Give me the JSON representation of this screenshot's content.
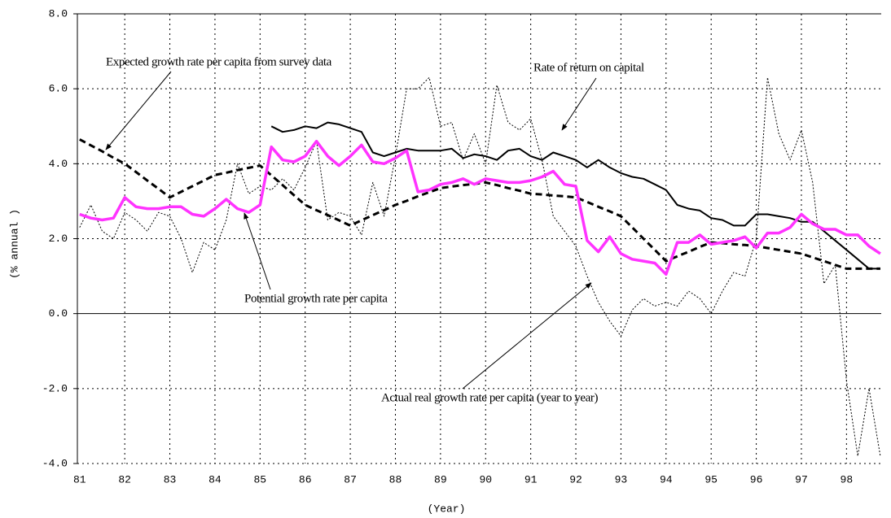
{
  "chart_data": {
    "type": "line",
    "xlabel": "(Year)",
    "ylabel": "(% annual )",
    "x": [
      81,
      81.25,
      81.5,
      81.75,
      82,
      82.25,
      82.5,
      82.75,
      83,
      83.25,
      83.5,
      83.75,
      84,
      84.25,
      84.5,
      84.75,
      85,
      85.25,
      85.5,
      85.75,
      86,
      86.25,
      86.5,
      86.75,
      87,
      87.25,
      87.5,
      87.75,
      88,
      88.25,
      88.5,
      88.75,
      89,
      89.25,
      89.5,
      89.75,
      90,
      90.25,
      90.5,
      90.75,
      91,
      91.25,
      91.5,
      91.75,
      92,
      92.25,
      92.5,
      92.75,
      93,
      93.25,
      93.5,
      93.75,
      94,
      94.25,
      94.5,
      94.75,
      95,
      95.25,
      95.5,
      95.75,
      96,
      96.25,
      96.5,
      96.75,
      97,
      97.25,
      97.5,
      97.75,
      98,
      98.25,
      98.5,
      98.75
    ],
    "series": [
      {
        "color": "#000000",
        "line_style": "dotted",
        "values": [
          2.3,
          2.9,
          2.2,
          2.0,
          2.7,
          2.5,
          2.2,
          2.7,
          2.6,
          2.0,
          1.1,
          1.9,
          1.7,
          2.5,
          4.0,
          3.2,
          3.4,
          3.3,
          3.6,
          3.3,
          3.9,
          4.6,
          2.5,
          2.7,
          2.6,
          2.1,
          3.5,
          2.6,
          4.2,
          6.0,
          6.0,
          6.3,
          5.0,
          5.1,
          4.1,
          4.8,
          4.0,
          6.1,
          5.1,
          4.9,
          5.2,
          4.1,
          2.6,
          2.2,
          1.8,
          1.0,
          0.3,
          -0.2,
          -0.6,
          0.1,
          0.4,
          0.2,
          0.3,
          0.2,
          0.6,
          0.4,
          0.0,
          0.6,
          1.1,
          1.0,
          2.0,
          6.3,
          4.8,
          4.1,
          4.9,
          3.5,
          0.8,
          1.3,
          -1.8,
          -3.8,
          -2.0,
          -3.8
        ]
      },
      {
        "color": "#000000",
        "line_style": "dashed",
        "values": [
          4.65,
          4.49,
          4.33,
          4.16,
          4.0,
          3.78,
          3.55,
          3.33,
          3.1,
          3.25,
          3.4,
          3.55,
          3.7,
          3.76,
          3.83,
          3.89,
          3.95,
          3.69,
          3.43,
          3.16,
          2.9,
          2.76,
          2.63,
          2.49,
          2.35,
          2.49,
          2.63,
          2.76,
          2.9,
          3.01,
          3.13,
          3.24,
          3.35,
          3.39,
          3.43,
          3.46,
          3.5,
          3.43,
          3.35,
          3.28,
          3.2,
          3.18,
          3.15,
          3.13,
          3.1,
          2.98,
          2.85,
          2.73,
          2.6,
          2.3,
          2.0,
          1.7,
          1.4,
          1.53,
          1.65,
          1.78,
          1.9,
          1.88,
          1.85,
          1.83,
          1.8,
          1.75,
          1.7,
          1.65,
          1.6,
          1.5,
          1.4,
          1.3,
          1.2,
          1.2,
          1.2,
          1.2
        ]
      },
      {
        "color": "#000000",
        "line_style": "solid",
        "values": [
          null,
          null,
          null,
          null,
          null,
          null,
          null,
          null,
          null,
          null,
          null,
          null,
          null,
          null,
          null,
          null,
          null,
          5.0,
          4.85,
          4.9,
          5.0,
          4.95,
          5.1,
          5.05,
          4.95,
          4.85,
          4.3,
          4.2,
          4.3,
          4.4,
          4.35,
          4.35,
          4.35,
          4.4,
          4.15,
          4.25,
          4.2,
          4.1,
          4.35,
          4.4,
          4.2,
          4.1,
          4.3,
          4.2,
          4.1,
          3.9,
          4.1,
          3.9,
          3.75,
          3.65,
          3.6,
          3.45,
          3.3,
          2.9,
          2.8,
          2.75,
          2.55,
          2.5,
          2.35,
          2.35,
          2.65,
          2.65,
          2.6,
          2.55,
          2.45,
          2.45,
          2.2,
          1.95,
          1.7,
          1.45,
          1.2,
          1.2
        ]
      },
      {
        "color": "#ff33ff",
        "line_style": "bold",
        "values": [
          2.65,
          2.55,
          2.5,
          2.55,
          3.1,
          2.85,
          2.8,
          2.8,
          2.85,
          2.85,
          2.65,
          2.6,
          2.8,
          3.05,
          2.8,
          2.7,
          2.9,
          4.45,
          4.1,
          4.05,
          4.2,
          4.6,
          4.2,
          3.95,
          4.2,
          4.5,
          4.05,
          4.0,
          4.15,
          4.35,
          3.25,
          3.3,
          3.45,
          3.5,
          3.6,
          3.45,
          3.6,
          3.55,
          3.5,
          3.5,
          3.55,
          3.65,
          3.8,
          3.45,
          3.4,
          1.95,
          1.65,
          2.05,
          1.6,
          1.45,
          1.4,
          1.35,
          1.05,
          1.9,
          1.9,
          2.1,
          1.85,
          1.9,
          1.95,
          2.05,
          1.75,
          2.15,
          2.15,
          2.3,
          2.65,
          2.4,
          2.25,
          2.25,
          2.1,
          2.1,
          1.8,
          1.6
        ]
      }
    ],
    "xlim": [
      80.95,
      98.77
    ],
    "xticks": [
      81,
      82,
      83,
      84,
      85,
      86,
      87,
      88,
      89,
      90,
      91,
      92,
      93,
      94,
      95,
      96,
      97,
      98
    ],
    "ylim": [
      -4,
      8
    ],
    "yticks": [
      {
        "value": -4,
        "label": "-4.0"
      },
      {
        "value": -2,
        "label": "-2.0"
      },
      {
        "value": 0,
        "label": "0.0"
      },
      {
        "value": 2,
        "label": "2.0"
      },
      {
        "value": 4,
        "label": "4.0"
      },
      {
        "value": 6,
        "label": "6.0"
      },
      {
        "value": 8,
        "label": "8.0"
      }
    ],
    "grid": true,
    "annotations": [
      "Expected growth rate per capita from survey data",
      "Rate of return on capital",
      "Potential growth rate per capita",
      "Actual real growth rate per capita (year to year)"
    ]
  }
}
